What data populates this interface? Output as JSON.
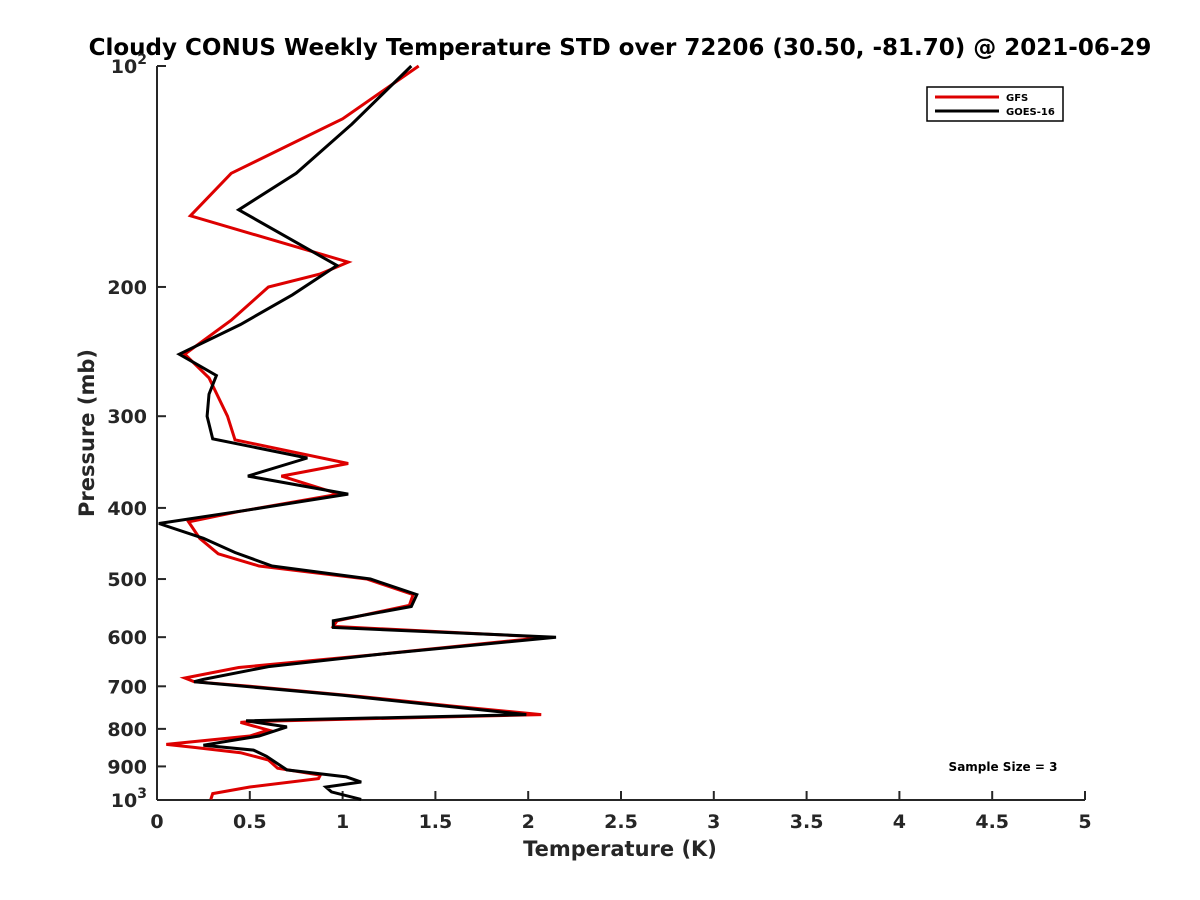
{
  "chart_data": {
    "type": "line",
    "title": "Cloudy CONUS Weekly Temperature STD over 72206 (30.50, -81.70) @ 2021-06-29",
    "xlabel": "Temperature (K)",
    "ylabel": "Pressure (mb)",
    "xlim": [
      0,
      5
    ],
    "ylim": [
      100,
      1000
    ],
    "y_scale": "log",
    "y_reversed": true,
    "grid": false,
    "legend_position": "top-right",
    "x_ticks": [
      0,
      0.5,
      1,
      1.5,
      2,
      2.5,
      3,
      3.5,
      4,
      4.5,
      5
    ],
    "x_tick_labels": [
      "0",
      "0.5",
      "1",
      "1.5",
      "2",
      "2.5",
      "3",
      "3.5",
      "4",
      "4.5",
      "5"
    ],
    "y_ticks": [
      100,
      200,
      300,
      400,
      500,
      600,
      700,
      800,
      900,
      1000
    ],
    "y_tick_labels": [
      "10^2",
      "200",
      "300",
      "400",
      "500",
      "600",
      "700",
      "800",
      "900",
      "10^3"
    ],
    "annotation": "Sample Size = 3",
    "series": [
      {
        "name": "GFS",
        "color": "#dd0000",
        "points": [
          [
            1.41,
            100
          ],
          [
            1.0,
            118
          ],
          [
            0.4,
            140
          ],
          [
            0.18,
            160
          ],
          [
            1.03,
            185
          ],
          [
            0.88,
            192
          ],
          [
            0.6,
            200
          ],
          [
            0.4,
            222
          ],
          [
            0.15,
            247
          ],
          [
            0.28,
            266
          ],
          [
            0.38,
            300
          ],
          [
            0.42,
            323
          ],
          [
            1.03,
            348
          ],
          [
            0.67,
            362
          ],
          [
            0.98,
            383
          ],
          [
            0.43,
            405
          ],
          [
            0.17,
            418
          ],
          [
            0.23,
            440
          ],
          [
            0.33,
            462
          ],
          [
            0.55,
            480
          ],
          [
            1.13,
            500
          ],
          [
            1.38,
            525
          ],
          [
            1.36,
            543
          ],
          [
            0.97,
            570
          ],
          [
            0.95,
            580
          ],
          [
            2.1,
            600
          ],
          [
            1.2,
            633
          ],
          [
            0.44,
            660
          ],
          [
            0.15,
            682
          ],
          [
            0.2,
            690
          ],
          [
            0.5,
            700
          ],
          [
            1.1,
            723
          ],
          [
            1.6,
            745
          ],
          [
            2.07,
            765
          ],
          [
            0.5,
            782
          ],
          [
            0.45,
            784
          ],
          [
            0.6,
            803
          ],
          [
            0.5,
            818
          ],
          [
            0.05,
            840
          ],
          [
            0.2,
            848
          ],
          [
            0.45,
            862
          ],
          [
            0.6,
            882
          ],
          [
            0.65,
            905
          ],
          [
            0.88,
            925
          ],
          [
            0.87,
            935
          ],
          [
            0.5,
            960
          ],
          [
            0.3,
            980
          ],
          [
            0.29,
            998
          ]
        ]
      },
      {
        "name": "GOES-16",
        "color": "#000000",
        "points": [
          [
            1.37,
            100
          ],
          [
            1.05,
            120
          ],
          [
            0.75,
            140
          ],
          [
            0.44,
            157
          ],
          [
            0.97,
            187
          ],
          [
            0.73,
            205
          ],
          [
            0.45,
            225
          ],
          [
            0.12,
            247
          ],
          [
            0.32,
            264
          ],
          [
            0.28,
            280
          ],
          [
            0.27,
            300
          ],
          [
            0.3,
            322
          ],
          [
            0.81,
            342
          ],
          [
            0.49,
            362
          ],
          [
            1.03,
            383
          ],
          [
            0.48,
            403
          ],
          [
            0.01,
            420
          ],
          [
            0.25,
            440
          ],
          [
            0.42,
            460
          ],
          [
            0.62,
            480
          ],
          [
            1.15,
            500
          ],
          [
            1.4,
            525
          ],
          [
            1.37,
            545
          ],
          [
            0.95,
            570
          ],
          [
            0.95,
            582
          ],
          [
            2.15,
            600
          ],
          [
            1.2,
            633
          ],
          [
            0.6,
            658
          ],
          [
            0.25,
            685
          ],
          [
            0.2,
            690
          ],
          [
            1.0,
            720
          ],
          [
            1.99,
            765
          ],
          [
            0.48,
            780
          ],
          [
            0.7,
            795
          ],
          [
            0.55,
            818
          ],
          [
            0.25,
            842
          ],
          [
            0.52,
            855
          ],
          [
            0.59,
            872
          ],
          [
            0.7,
            910
          ],
          [
            1.02,
            930
          ],
          [
            1.1,
            945
          ],
          [
            0.91,
            960
          ],
          [
            0.94,
            975
          ],
          [
            1.1,
            998
          ]
        ]
      }
    ]
  }
}
